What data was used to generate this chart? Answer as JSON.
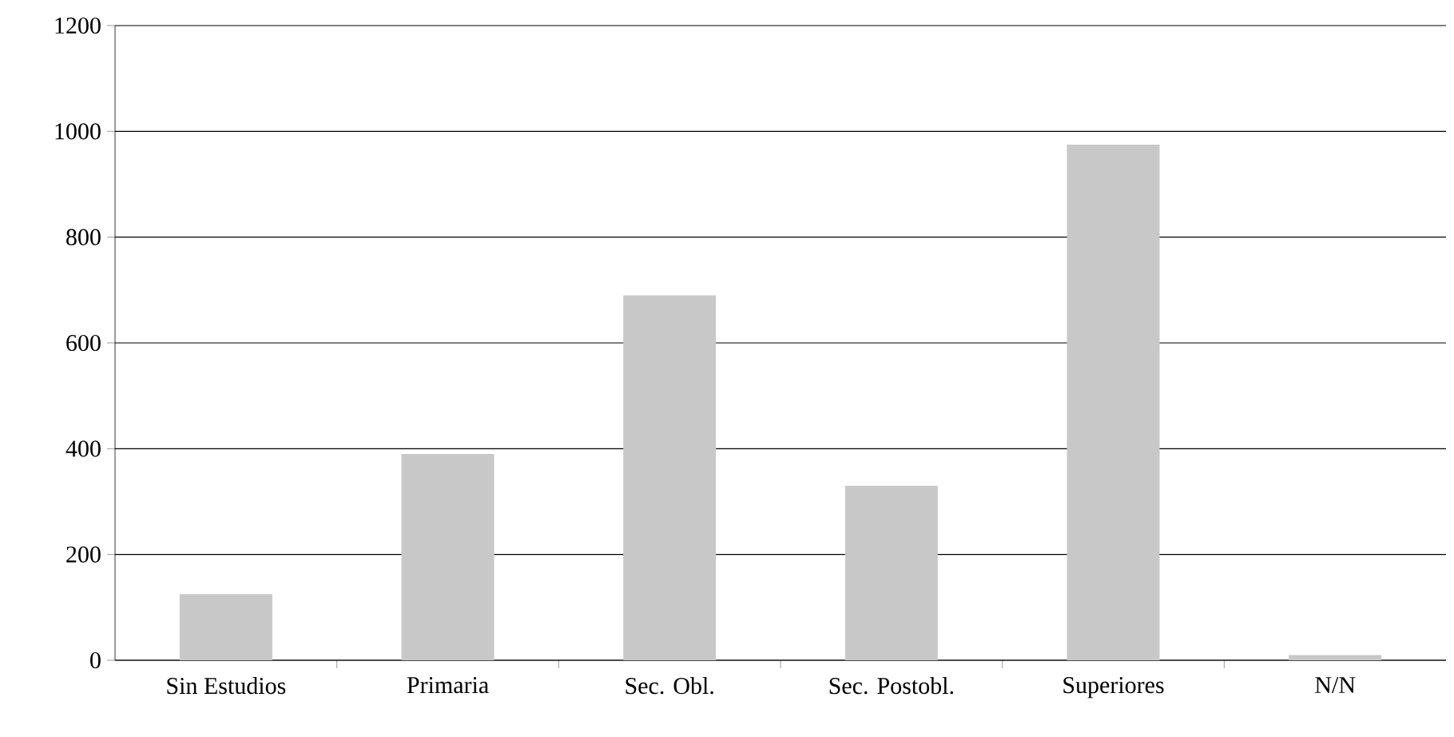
{
  "chart_data": {
    "type": "bar",
    "categories": [
      "Sin Estudios",
      "Primaria",
      "Sec. Obl.",
      "Sec. Postobl.",
      "Superiores",
      "N/N"
    ],
    "values": [
      125,
      390,
      690,
      330,
      975,
      10
    ],
    "color": "#c8c8c8",
    "ylim": [
      0,
      1200
    ],
    "yticks": [
      0,
      200,
      400,
      600,
      800,
      1000,
      1200
    ],
    "grid": "y"
  }
}
